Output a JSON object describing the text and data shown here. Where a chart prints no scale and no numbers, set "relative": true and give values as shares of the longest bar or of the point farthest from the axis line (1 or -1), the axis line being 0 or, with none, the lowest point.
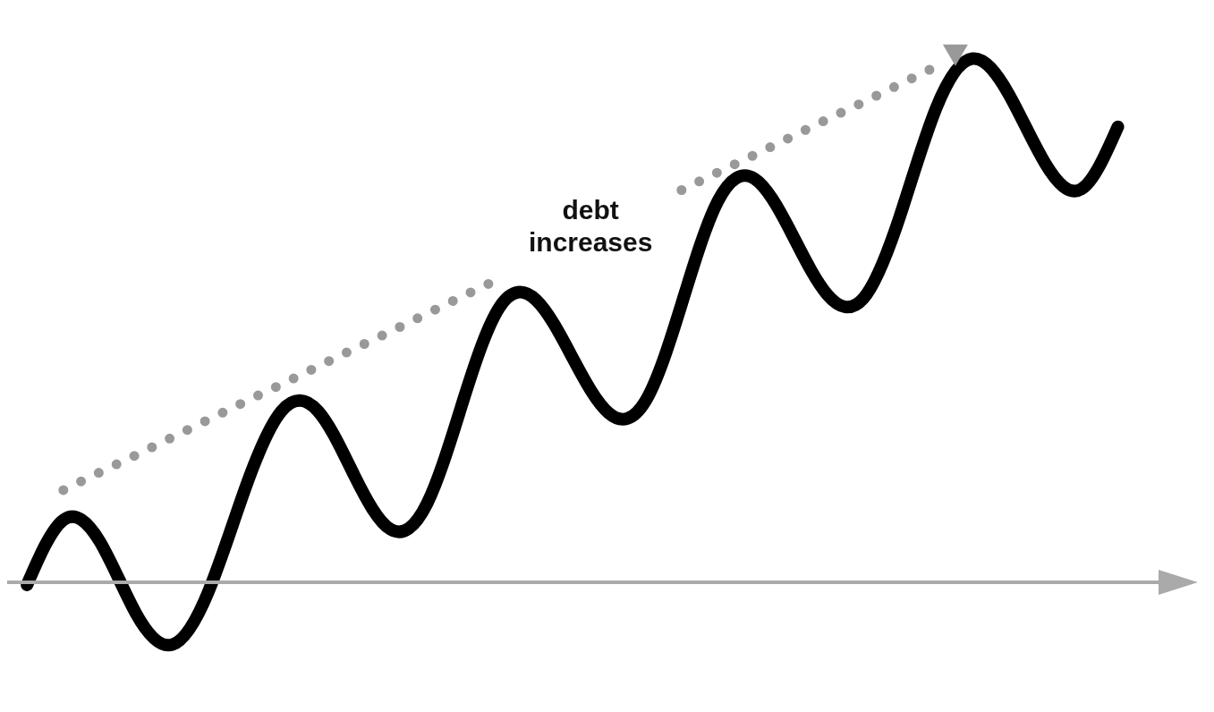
{
  "chart_data": {
    "type": "line",
    "relative": true,
    "categories": [
      null,
      null,
      null,
      null,
      null,
      null,
      null,
      null,
      null,
      null,
      null,
      null,
      null,
      null,
      null,
      null,
      null,
      null,
      null,
      null,
      null,
      null,
      null,
      null,
      null,
      null,
      null,
      null,
      null,
      null,
      null
    ],
    "series": [
      {
        "color": "#000000",
        "values": [
          -0.005,
          0.119,
          0.078,
          -0.06,
          -0.119,
          -0.016,
          0.179,
          0.327,
          0.327,
          0.204,
          0.101,
          0.15,
          0.348,
          0.526,
          0.539,
          0.429,
          0.323,
          0.345,
          0.531,
          0.728,
          0.771,
          0.67,
          0.55,
          0.542,
          0.698,
          0.905,
          1.0,
          0.932,
          0.8,
          0.751,
          0.87
        ]
      },
      {
        "color": "#999999",
        "line_style": "dotted",
        "values": [
          null,
          0.176,
          0.21,
          0.243,
          0.277,
          0.311,
          0.345,
          0.378,
          0.412,
          0.446,
          0.479,
          0.513,
          0.547,
          0.58,
          null,
          null,
          null,
          null,
          0.749,
          0.783,
          0.816,
          0.85,
          0.884,
          0.917,
          0.951,
          0.985,
          null,
          null,
          null,
          null,
          null
        ]
      }
    ],
    "annotations": [
      "debt increases"
    ]
  }
}
